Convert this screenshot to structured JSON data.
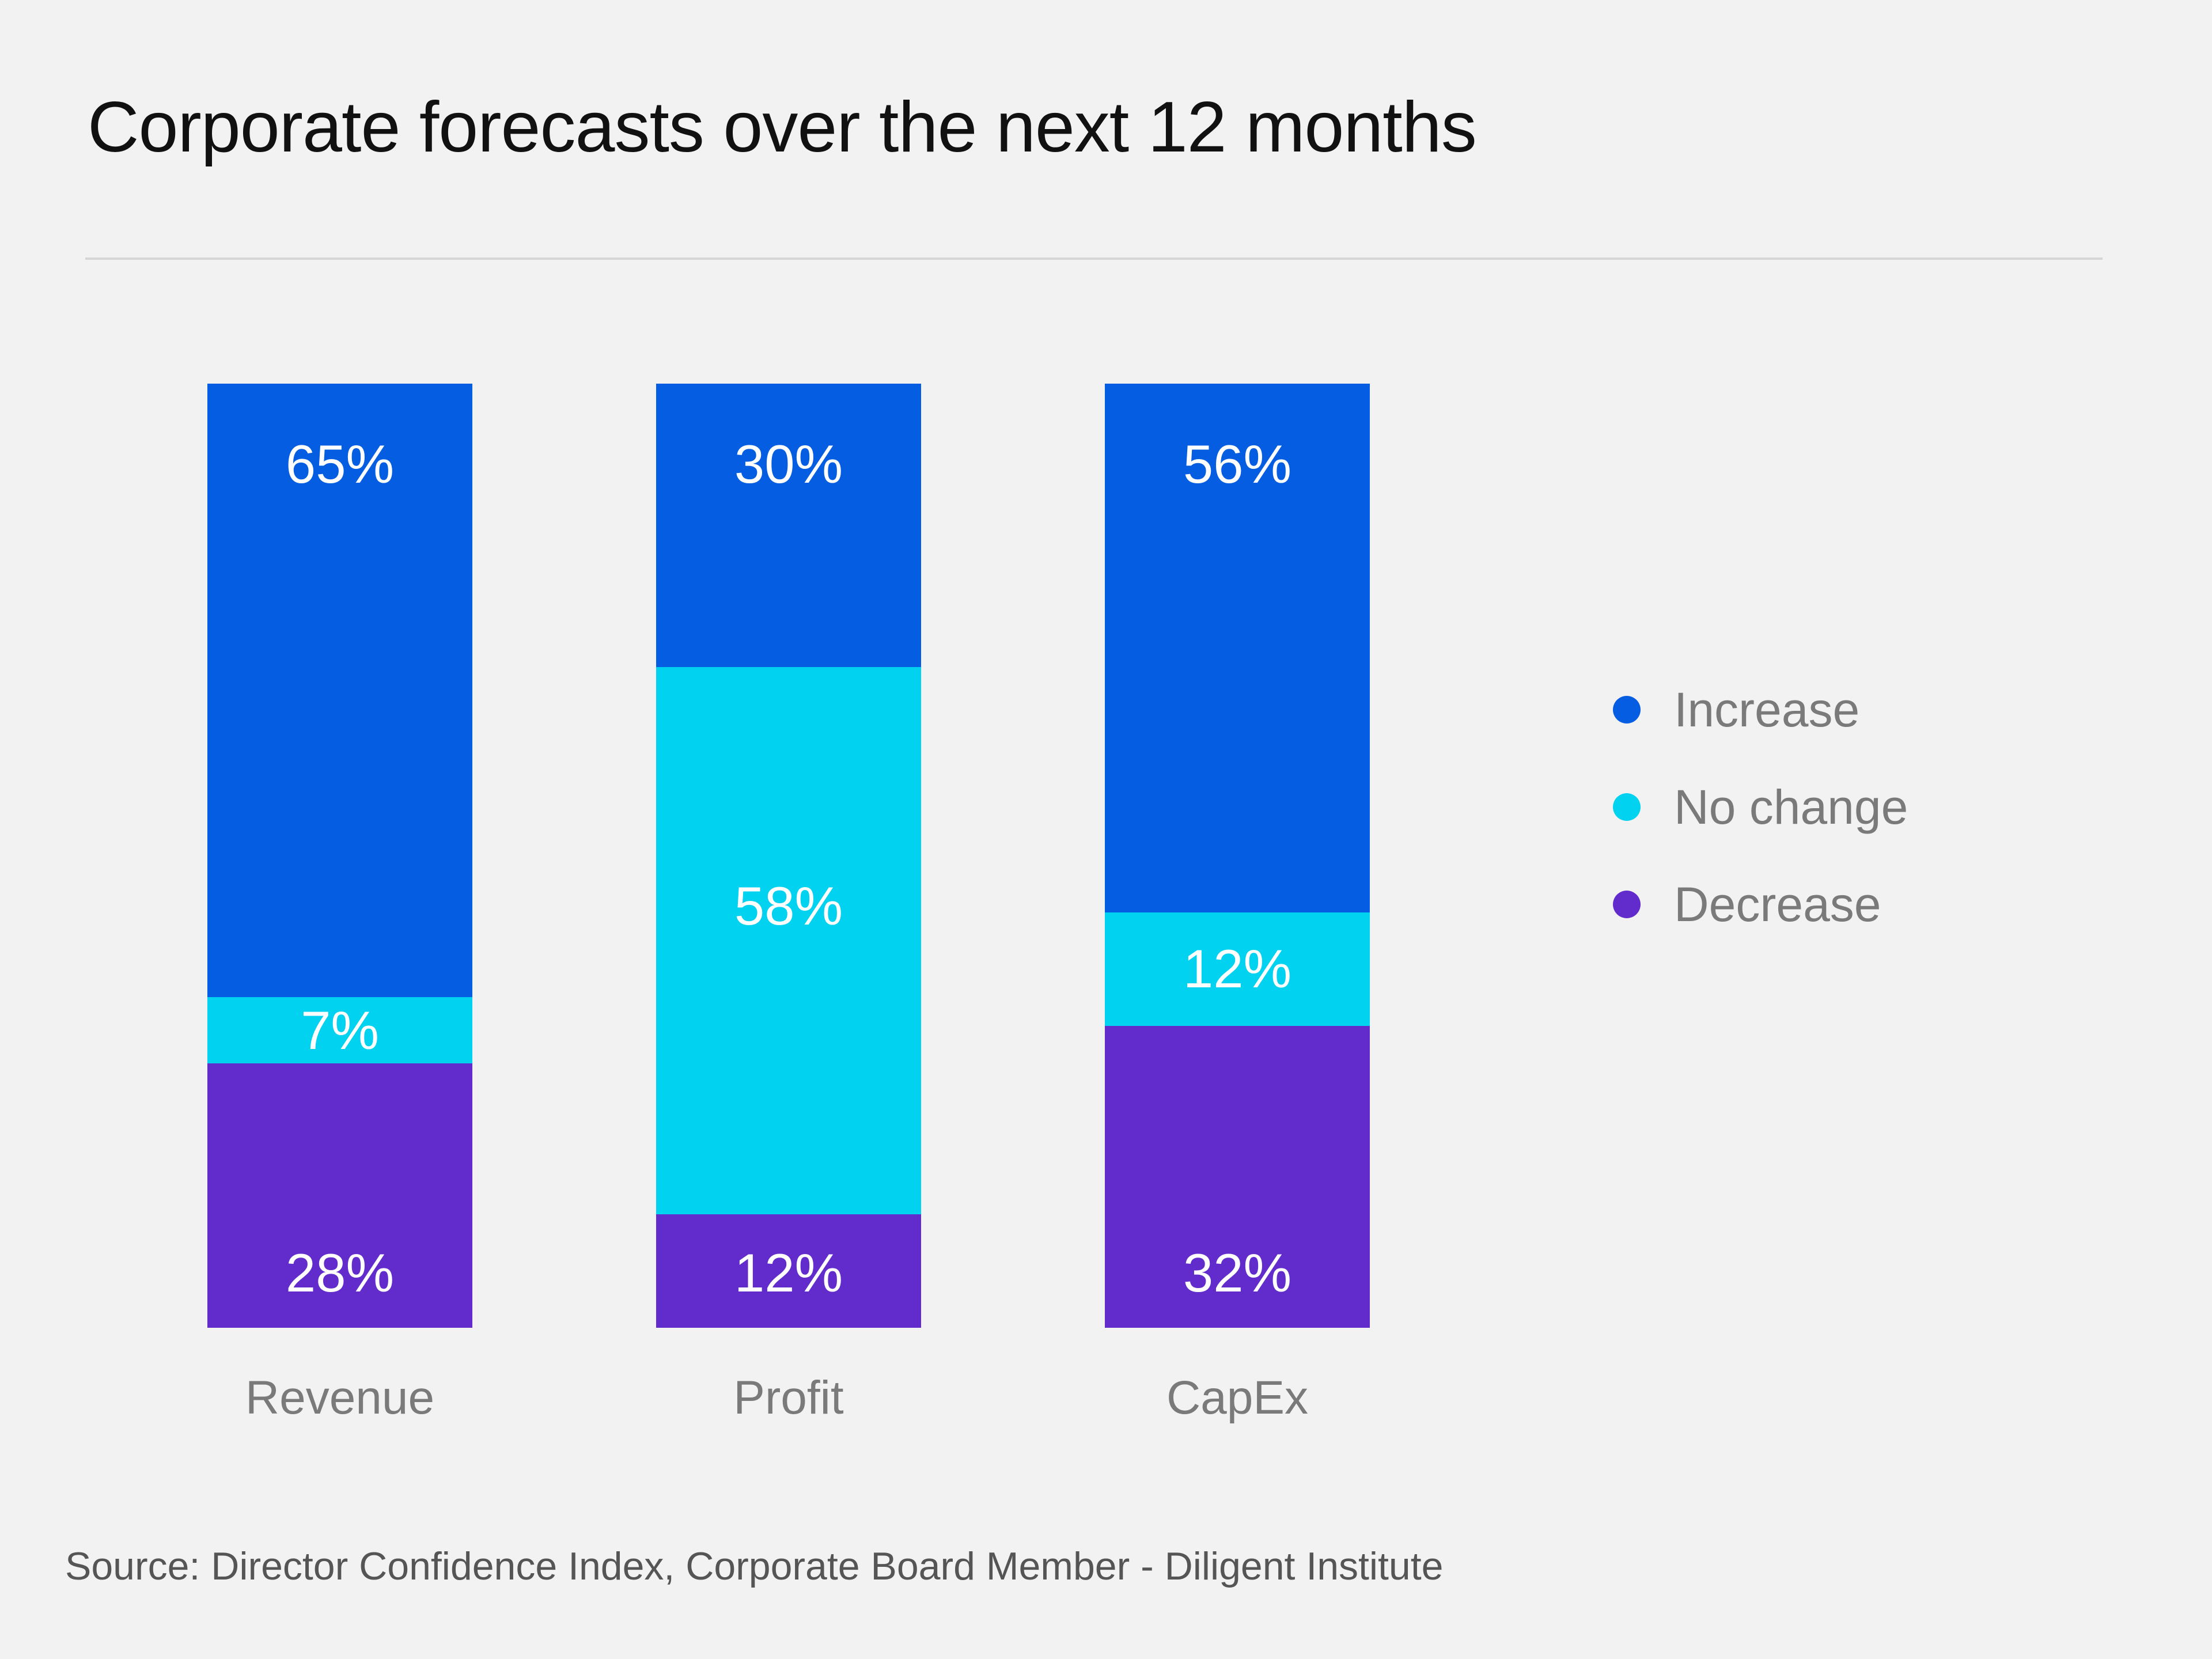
{
  "chart_data": {
    "type": "bar",
    "stacked": true,
    "title": "Corporate forecasts over the next 12 months",
    "categories": [
      "Revenue",
      "Profit",
      "CapEx"
    ],
    "series": [
      {
        "name": "Increase",
        "color": "#055ee2",
        "values": [
          65,
          30,
          56
        ],
        "labels": [
          "65%",
          "30%",
          "56%"
        ]
      },
      {
        "name": "No change",
        "color": "#00d2f0",
        "values": [
          7,
          58,
          12
        ],
        "labels": [
          "7%",
          "58%",
          "12%"
        ]
      },
      {
        "name": "Decrease",
        "color": "#622ccd",
        "values": [
          28,
          12,
          32
        ],
        "labels": [
          "28%",
          "12%",
          "32%"
        ]
      }
    ],
    "ylim": [
      0,
      100
    ],
    "grid": false,
    "legend_position": "right",
    "source": "Source: Director Confidence Index, Corporate Board Member - Diligent Institute"
  }
}
